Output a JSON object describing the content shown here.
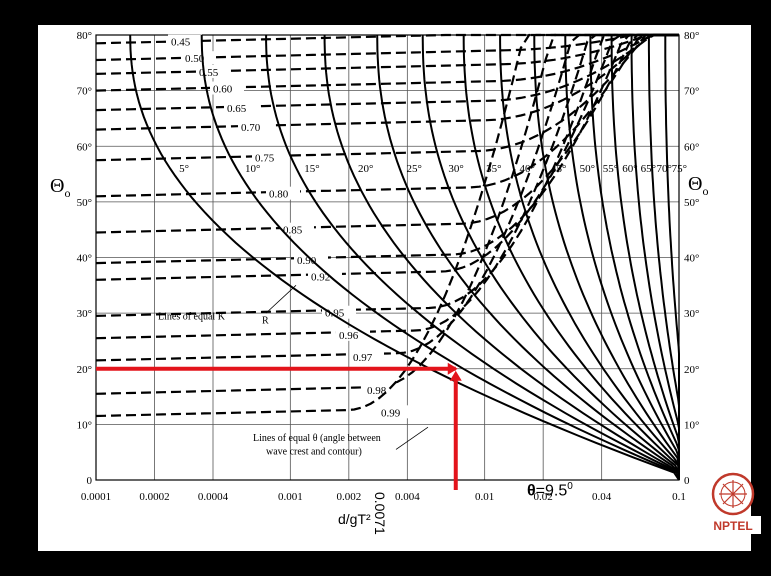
{
  "chart_data": {
    "type": "line",
    "x_scale": "log",
    "xlim": [
      0.0001,
      0.1
    ],
    "ylim": [
      0,
      80
    ],
    "x_ticks": [
      "0.0001",
      "0.0002",
      "0.0004",
      "0.001",
      "0.002",
      "0.004",
      "0.01",
      "0.02",
      "0.04",
      "0.1"
    ],
    "y_ticks_left": [
      "0",
      "10°",
      "20°",
      "30°",
      "40°",
      "50°",
      "60°",
      "70°",
      "80°"
    ],
    "y_ticks_right": [
      "0",
      "10°",
      "20°",
      "30°",
      "40°",
      "50°",
      "60°",
      "70°",
      "80°"
    ],
    "xlabel": "d/gT²",
    "ylabel_left": "Θo",
    "ylabel_right": "Θo",
    "kr_lines": [
      {
        "label": "0.45",
        "y0": 78.5
      },
      {
        "label": "0.50",
        "y0": 75.5
      },
      {
        "label": "0.55",
        "y0": 73
      },
      {
        "label": "0.60",
        "y0": 70
      },
      {
        "label": "0.65",
        "y0": 66.5
      },
      {
        "label": "0.70",
        "y0": 63
      },
      {
        "label": "0.75",
        "y0": 57.5
      },
      {
        "label": "0.80",
        "y0": 51
      },
      {
        "label": "0.85",
        "y0": 44.5
      },
      {
        "label": "0.90",
        "y0": 39
      },
      {
        "label": "0.92",
        "y0": 36
      },
      {
        "label": "0.95",
        "y0": 29.5
      },
      {
        "label": "0.96",
        "y0": 25.5
      },
      {
        "label": "0.97",
        "y0": 21.5
      },
      {
        "label": "0.98",
        "y0": 15.5
      },
      {
        "label": "0.99",
        "y0": 11.5
      }
    ],
    "theta_lines": [
      {
        "label": "5°",
        "x80": 0.00015
      },
      {
        "label": "10°",
        "x80": 0.00035
      },
      {
        "label": "15°",
        "x80": 0.00075
      },
      {
        "label": "20°",
        "x80": 0.0015
      },
      {
        "label": "25°",
        "x80": 0.0028
      },
      {
        "label": "30°",
        "x80": 0.0048
      },
      {
        "label": "35°",
        "x80": 0.0078
      },
      {
        "label": "40°",
        "x80": 0.012
      },
      {
        "label": "45°",
        "x80": 0.018
      },
      {
        "label": "50°",
        "x80": 0.026
      },
      {
        "label": "55°",
        "x80": 0.035
      },
      {
        "label": "60°",
        "x80": 0.045
      },
      {
        "label": "65°",
        "x80": 0.057
      },
      {
        "label": "70°",
        "x80": 0.07
      },
      {
        "label": "75°",
        "x80": 0.085
      }
    ],
    "annotations": {
      "kr": "Lines of equal K",
      "kr_sub": "R",
      "theta_line1": "Lines of equal θ (angle between",
      "theta_line2": "wave crest and contour)"
    },
    "highlight": {
      "theta0": 20,
      "x": 0.0071,
      "color": "#e3141b"
    }
  },
  "readout": "0.0071",
  "result": {
    "symbol": "θ",
    "text": "=9.5",
    "sup": "0"
  },
  "logo": {
    "text": "NPTEL",
    "color": "#c0392b"
  }
}
